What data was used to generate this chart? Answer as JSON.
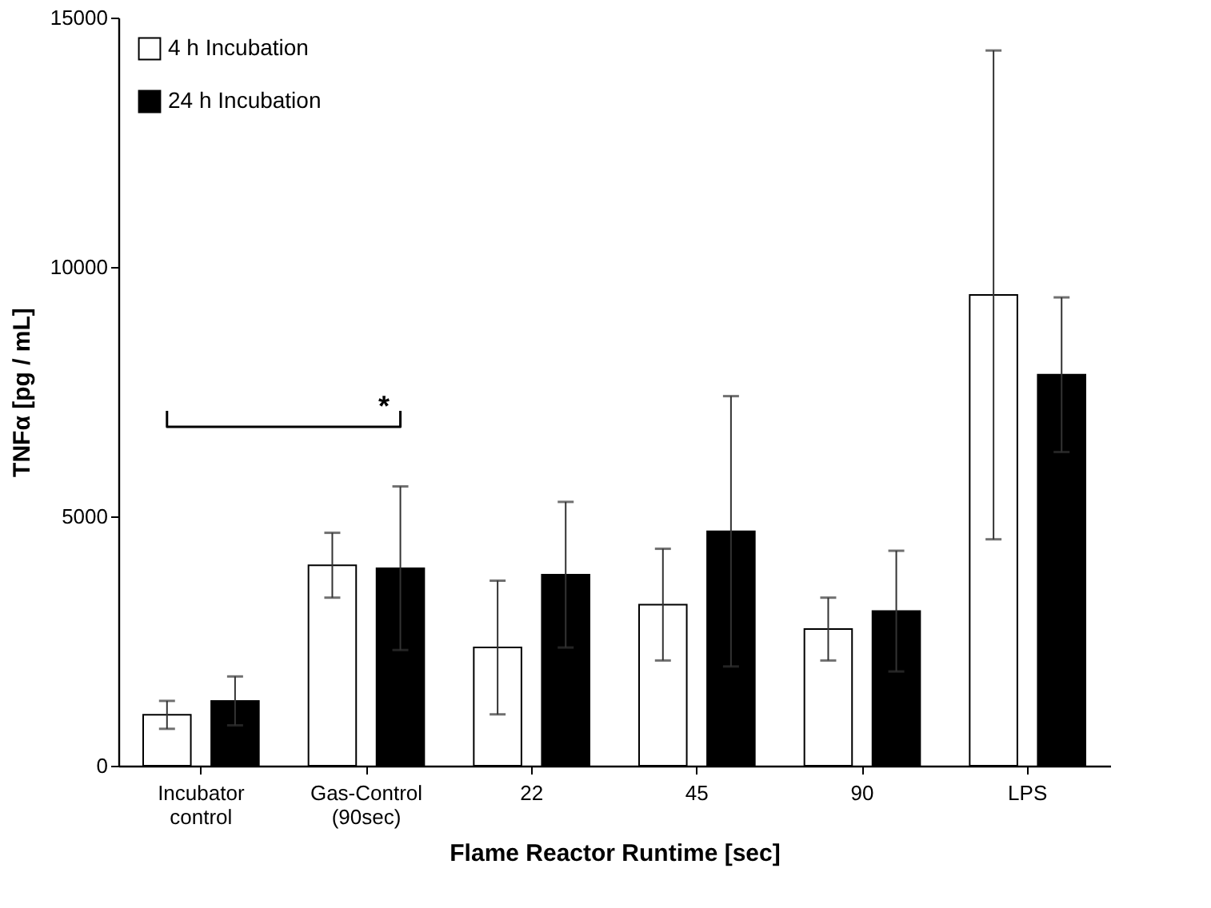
{
  "chart_data": {
    "type": "bar",
    "xlabel": "Flame Reactor Runtime [sec]",
    "ylabel": "TNFα [pg / mL]",
    "categories": [
      "Incubator control",
      "Gas-Control (90sec)",
      "22",
      "45",
      "90",
      "LPS"
    ],
    "series": [
      {
        "name": "4 h Incubation",
        "color": "#ffffff",
        "values": [
          1020,
          4020,
          2370,
          3230,
          2740,
          9440
        ],
        "errors": [
          280,
          650,
          1340,
          1120,
          630,
          4900
        ]
      },
      {
        "name": "24 h Incubation",
        "color": "#000000",
        "values": [
          1300,
          3960,
          3830,
          4700,
          3100,
          7840
        ],
        "errors": [
          490,
          1640,
          1460,
          2710,
          1210,
          1550
        ]
      }
    ],
    "ylim": [
      0,
      15000
    ],
    "yticks": [
      0,
      5000,
      10000,
      15000
    ],
    "grid": false,
    "legend": "top left",
    "annotations": [
      "*"
    ]
  }
}
